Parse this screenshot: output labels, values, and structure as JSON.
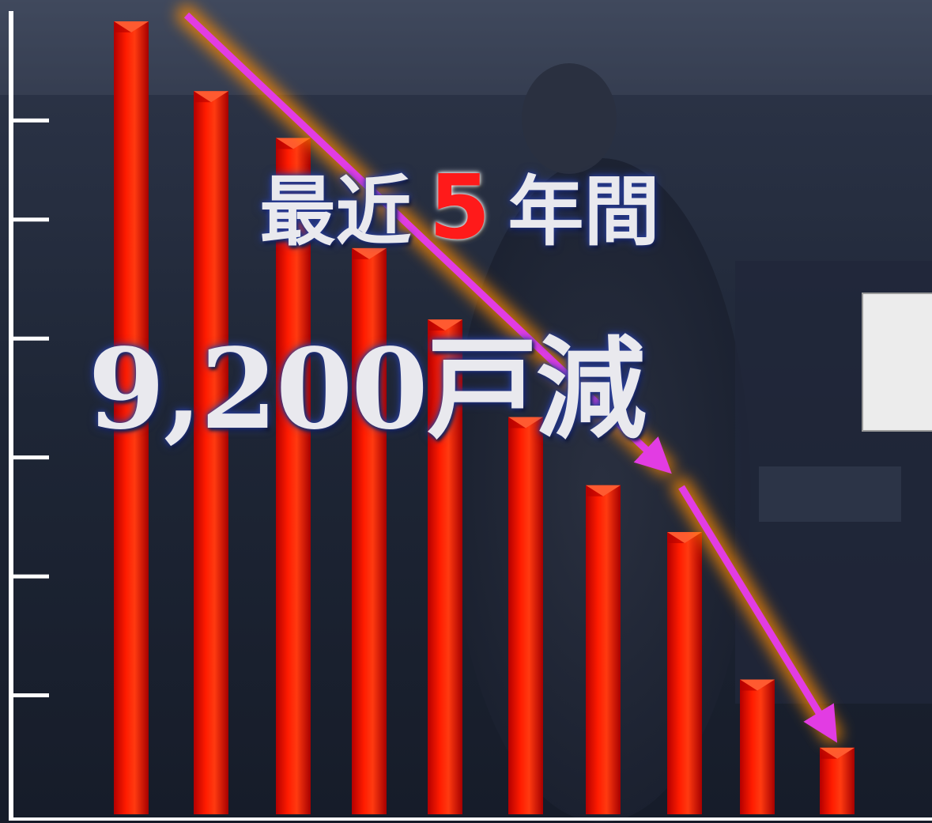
{
  "headline": {
    "prefix": "最近",
    "number": "5",
    "suffix": "年間",
    "amount": "9,200戸減"
  },
  "colors": {
    "bar": "#ff1c00",
    "bar_dark": "#b40000",
    "arrow": "#e23ce3",
    "arrow_glow": "#ff8a00",
    "axis": "#ffffff",
    "background": "#1a2233"
  },
  "chart_data": {
    "type": "bar",
    "categories": [
      "",
      "",
      "",
      "",
      "",
      "",
      "",
      "",
      "",
      ""
    ],
    "values": [
      100,
      91.2,
      85.3,
      71.4,
      62.4,
      50.1,
      41.5,
      35.6,
      17.0,
      8.4
    ],
    "ylim": [
      0,
      101.5
    ],
    "y_ticks": [
      15,
      30,
      45,
      60,
      75,
      87.5
    ],
    "title": "",
    "xlabel": "",
    "ylabel": "",
    "grid": false,
    "trend_arrows": [
      {
        "from_index": 0,
        "to_index": 6
      },
      {
        "from_index": 7,
        "to_index": 9
      }
    ]
  }
}
